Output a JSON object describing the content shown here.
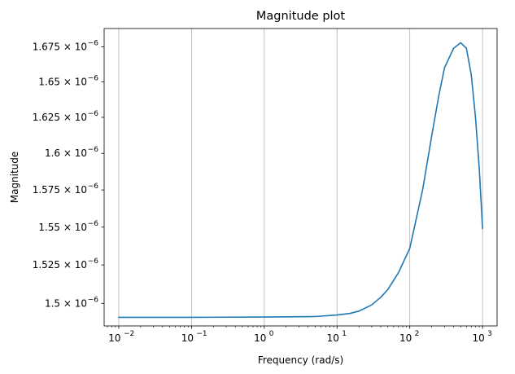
{
  "chart_data": {
    "type": "line",
    "title": "Magnitude plot",
    "xlabel": "Frequency (rad/s)",
    "ylabel": "Magnitude",
    "x_scale": "log",
    "y_scale": "log",
    "xlim": [
      0.0063,
      1585
    ],
    "ylim": [
      1.4855e-06,
      1.6883e-06
    ],
    "grid": {
      "x_major": true,
      "y": false
    },
    "x_ticks": [
      {
        "value": 0.01,
        "base": "10",
        "exp": "−2"
      },
      {
        "value": 0.1,
        "base": "10",
        "exp": "−1"
      },
      {
        "value": 1,
        "base": "10",
        "exp": "0"
      },
      {
        "value": 10,
        "base": "10",
        "exp": "1"
      },
      {
        "value": 100,
        "base": "10",
        "exp": "2"
      },
      {
        "value": 1000,
        "base": "10",
        "exp": "3"
      }
    ],
    "y_ticks": [
      {
        "value": 1.5e-06,
        "mantissa": "1.5",
        "exp": "−6"
      },
      {
        "value": 1.525e-06,
        "mantissa": "1.525",
        "exp": "−6"
      },
      {
        "value": 1.55e-06,
        "mantissa": "1.55",
        "exp": "−6"
      },
      {
        "value": 1.575e-06,
        "mantissa": "1.575",
        "exp": "−6"
      },
      {
        "value": 1.6e-06,
        "mantissa": "1.6",
        "exp": "−6"
      },
      {
        "value": 1.625e-06,
        "mantissa": "1.625",
        "exp": "−6"
      },
      {
        "value": 1.65e-06,
        "mantissa": "1.65",
        "exp": "−6"
      },
      {
        "value": 1.675e-06,
        "mantissa": "1.675",
        "exp": "−6"
      }
    ],
    "times_sign": "×",
    "series": [
      {
        "color": "#1f77b4",
        "x": [
          0.01,
          0.1,
          1,
          5,
          10,
          15,
          20,
          30,
          40,
          50,
          70,
          100,
          150,
          200,
          250,
          300,
          400,
          500,
          600,
          700,
          800,
          900,
          1000
        ],
        "y": [
          1.491e-06,
          1.491e-06,
          1.4912e-06,
          1.4915e-06,
          1.4925e-06,
          1.4935e-06,
          1.495e-06,
          1.499e-06,
          1.504e-06,
          1.509e-06,
          1.52e-06,
          1.536e-06,
          1.575e-06,
          1.612e-06,
          1.64e-06,
          1.66e-06,
          1.674e-06,
          1.678e-06,
          1.674e-06,
          1.655e-06,
          1.625e-06,
          1.59e-06,
          1.549e-06
        ]
      }
    ]
  }
}
